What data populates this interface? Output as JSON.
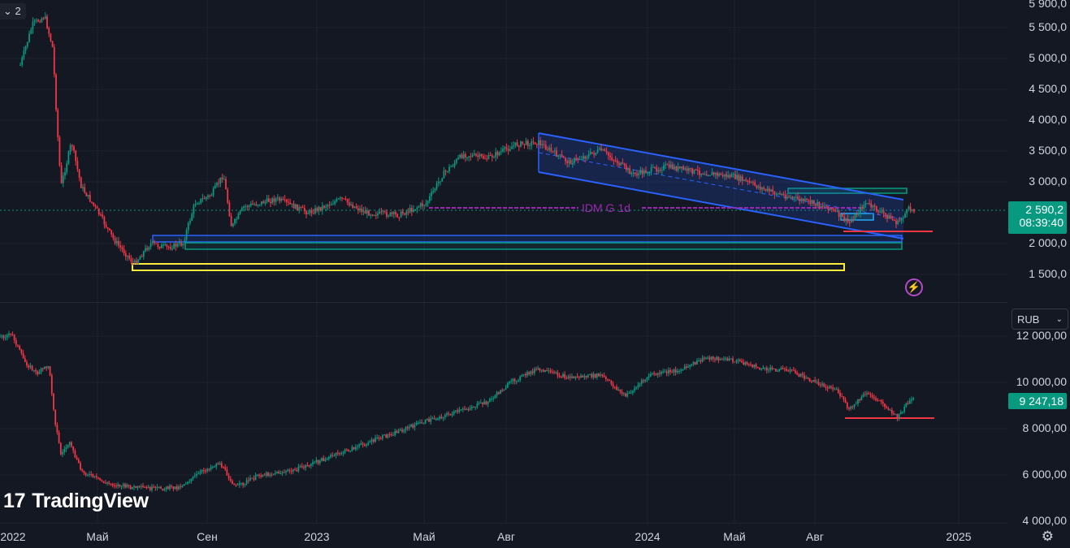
{
  "toolbar": {
    "collapse_label": "⌄ 2"
  },
  "top_pane": {
    "price_ticks": [
      "5 500,0",
      "5 000,0",
      "4 500,0",
      "4 000,0",
      "3 500,0",
      "3 000,0",
      "2 000,0",
      "1 500,0"
    ],
    "last_price": "2 590,2",
    "countdown": "08:39:40",
    "indicator_label": "IDM G 1d"
  },
  "bottom_pane": {
    "price_ticks": [
      "12 000,00",
      "10 000,00",
      "8 000,00",
      "6 000,00",
      "4 000,00"
    ],
    "last_value": "9 247,18",
    "currency": "RUB"
  },
  "time_axis": [
    "2022",
    "Май",
    "Сен",
    "2023",
    "Май",
    "Авг",
    "2024",
    "Май",
    "Авг",
    "2025"
  ],
  "brand": {
    "name": "TradingView",
    "mark": "17"
  },
  "colors": {
    "bg": "#141823",
    "up": "#089981",
    "down": "#f23645",
    "channel": "#2962ff",
    "idm": "#9c27b0",
    "zone_yellow": "#ffeb3b"
  }
}
